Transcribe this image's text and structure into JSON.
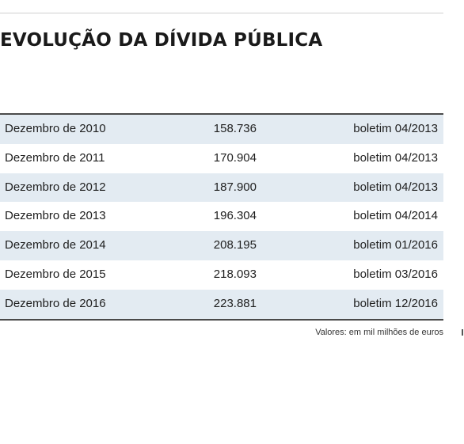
{
  "title": "EVOLUÇÃO DA DÍVIDA PÚBLICA",
  "table": {
    "rows": [
      {
        "period": "Dezembro de 2010",
        "value": "158.736",
        "source": "boletim 04/2013"
      },
      {
        "period": "Dezembro de 2011",
        "value": "170.904",
        "source": "boletim 04/2013"
      },
      {
        "period": "Dezembro de 2012",
        "value": "187.900",
        "source": "boletim 04/2013"
      },
      {
        "period": "Dezembro de 2013",
        "value": "196.304",
        "source": "boletim 04/2014"
      },
      {
        "period": "Dezembro de 2014",
        "value": "208.195",
        "source": "boletim 01/2016"
      },
      {
        "period": "Dezembro de 2015",
        "value": "218.093",
        "source": "boletim 03/2016"
      },
      {
        "period": "Dezembro de 2016",
        "value": "223.881",
        "source": "boletim 12/2016"
      }
    ]
  },
  "footnote": "Valores: em mil milhões de euros",
  "colors": {
    "row_shade": "#e3ebf2",
    "rule": "#4a4a4a",
    "text": "#1e1e1e"
  }
}
